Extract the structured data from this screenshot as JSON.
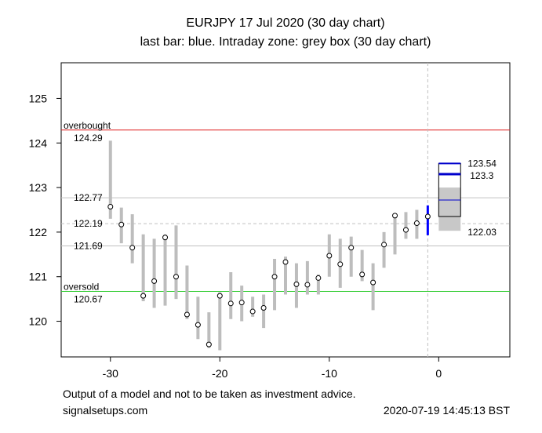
{
  "chart_data": {
    "type": "range-bar",
    "title": "EURJPY 17 Jul 2020  (30 day chart)",
    "subtitle": "last bar: blue. Intraday zone: grey box (30 day chart)",
    "xlim": [
      -34.5,
      6.5
    ],
    "ylim": [
      119.2,
      125.8
    ],
    "xticks": [
      -30,
      -20,
      -10,
      0
    ],
    "yticks": [
      120,
      121,
      122,
      123,
      124,
      125
    ],
    "grid": false,
    "levels": [
      {
        "name": "overbought",
        "value": 124.29,
        "value_label": "124.29",
        "color": "#e02020"
      },
      {
        "name": "",
        "value": 122.77,
        "value_label": "122.77",
        "color": "#c0c0c0"
      },
      {
        "name": "",
        "value": 122.19,
        "value_label": "122.19",
        "color": "#c0c0c0",
        "dashed": true
      },
      {
        "name": "",
        "value": 121.69,
        "value_label": "121.69",
        "color": "#c0c0c0"
      },
      {
        "name": "oversold",
        "value": 120.67,
        "value_label": "120.67",
        "color": "#33cc33"
      }
    ],
    "current_marker_x": -1,
    "bars": [
      {
        "x": -30,
        "low": 122.3,
        "high": 124.05,
        "close": 122.57
      },
      {
        "x": -29,
        "low": 121.75,
        "high": 122.55,
        "close": 122.17
      },
      {
        "x": -28,
        "low": 121.3,
        "high": 122.4,
        "close": 121.65
      },
      {
        "x": -27,
        "low": 120.45,
        "high": 121.95,
        "close": 120.57
      },
      {
        "x": -26,
        "low": 120.3,
        "high": 121.85,
        "close": 120.9
      },
      {
        "x": -25,
        "low": 120.35,
        "high": 121.95,
        "close": 121.88
      },
      {
        "x": -24,
        "low": 120.5,
        "high": 122.15,
        "close": 121.0
      },
      {
        "x": -23,
        "low": 120.05,
        "high": 121.25,
        "close": 120.15
      },
      {
        "x": -22,
        "low": 119.6,
        "high": 120.55,
        "close": 119.92
      },
      {
        "x": -21,
        "low": 119.4,
        "high": 120.2,
        "close": 119.48
      },
      {
        "x": -20,
        "low": 119.35,
        "high": 120.65,
        "close": 120.57
      },
      {
        "x": -19,
        "low": 120.05,
        "high": 121.1,
        "close": 120.4
      },
      {
        "x": -18,
        "low": 120.0,
        "high": 120.8,
        "close": 120.42
      },
      {
        "x": -17,
        "low": 120.1,
        "high": 120.55,
        "close": 120.22
      },
      {
        "x": -16,
        "low": 119.85,
        "high": 120.6,
        "close": 120.3
      },
      {
        "x": -15,
        "low": 120.25,
        "high": 121.4,
        "close": 121.0
      },
      {
        "x": -14,
        "low": 120.6,
        "high": 121.45,
        "close": 121.33
      },
      {
        "x": -13,
        "low": 120.3,
        "high": 121.3,
        "close": 120.83
      },
      {
        "x": -12,
        "low": 120.6,
        "high": 121.35,
        "close": 120.82
      },
      {
        "x": -11,
        "low": 120.6,
        "high": 121.05,
        "close": 120.97
      },
      {
        "x": -10,
        "low": 121.0,
        "high": 121.95,
        "close": 121.47
      },
      {
        "x": -9,
        "low": 120.75,
        "high": 121.85,
        "close": 121.28
      },
      {
        "x": -8,
        "low": 121.0,
        "high": 121.9,
        "close": 121.65
      },
      {
        "x": -7,
        "low": 120.9,
        "high": 121.6,
        "close": 121.05
      },
      {
        "x": -6,
        "low": 120.25,
        "high": 121.3,
        "close": 120.87
      },
      {
        "x": -5,
        "low": 121.2,
        "high": 122.0,
        "close": 121.72
      },
      {
        "x": -4,
        "low": 121.5,
        "high": 122.4,
        "close": 122.37
      },
      {
        "x": -3,
        "low": 121.85,
        "high": 122.45,
        "close": 122.05
      },
      {
        "x": -2,
        "low": 121.85,
        "high": 122.5,
        "close": 122.2
      },
      {
        "x": -1,
        "low": 121.93,
        "high": 122.6,
        "close": 122.35,
        "last": true
      }
    ],
    "intraday_zone": {
      "x_start": 0,
      "x_end": 2,
      "grey_top": 123.0,
      "grey_bottom": 122.03,
      "blue_top": 123.54,
      "blue_bottom": 122.35,
      "blue_line": 123.3,
      "mid_line": 122.72,
      "labels": [
        "123.54",
        "123.3",
        "122.03"
      ]
    }
  },
  "footer": {
    "disclaimer": "Output of a model and not to be taken as investment advice.",
    "source": "signalsetups.com",
    "timestamp": "2020-07-19 14:45:13 BST"
  }
}
